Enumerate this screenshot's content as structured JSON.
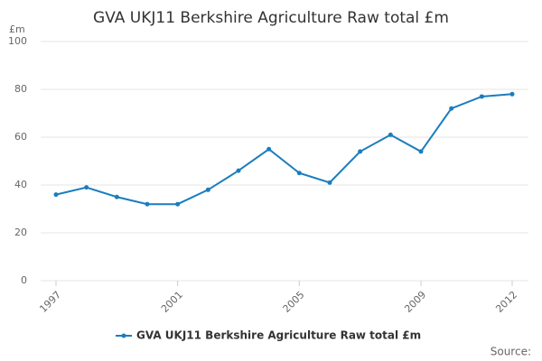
{
  "chart_data": {
    "type": "line",
    "title": "GVA UKJ11 Berkshire Agriculture Raw total £m",
    "y_label": "£m",
    "source": "Source:",
    "x": [
      1997,
      1998,
      1999,
      2000,
      2001,
      2002,
      2003,
      2004,
      2005,
      2006,
      2007,
      2008,
      2009,
      2010,
      2011,
      2012
    ],
    "xlim": [
      1997,
      2012
    ],
    "xticks": [
      1997,
      2001,
      2005,
      2009,
      2012
    ],
    "ylim": [
      0,
      100
    ],
    "yticks": [
      0,
      20,
      40,
      60,
      80,
      100
    ],
    "grid": true,
    "legend": "bottom",
    "series": [
      {
        "name": "GVA UKJ11 Berkshire Agriculture Raw total £m",
        "color": "#1a7dbd",
        "values": [
          36,
          39,
          35,
          32,
          32,
          38,
          46,
          55,
          45,
          41,
          54,
          61,
          54,
          72,
          77,
          78
        ]
      }
    ]
  }
}
